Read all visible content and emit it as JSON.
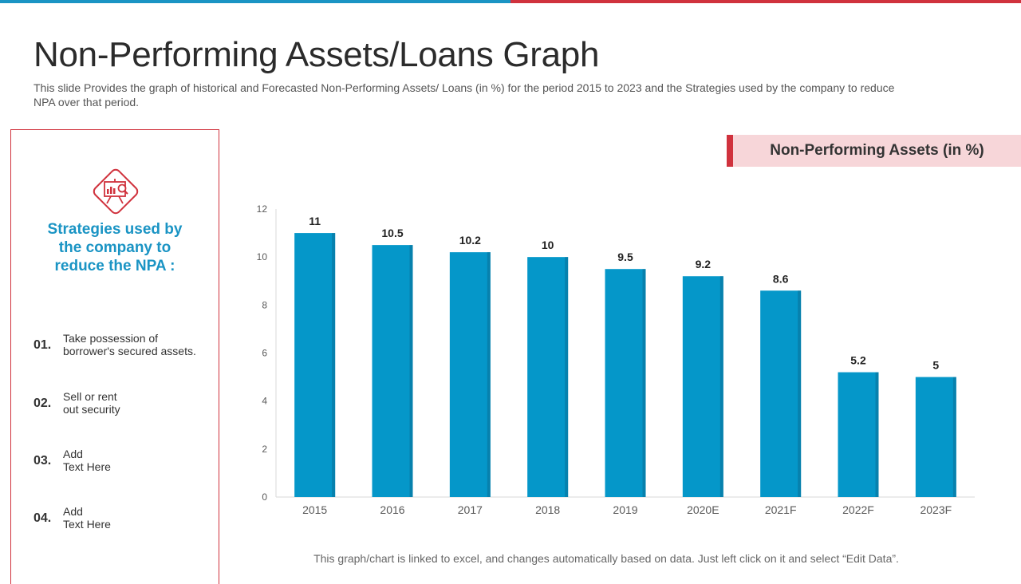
{
  "header": {
    "title": "Non-Performing Assets/Loans Graph",
    "subtitle": "This slide Provides the graph of historical and Forecasted Non-Performing Assets/ Loans (in %) for the period 2015 to 2023 and the Strategies used by the company to reduce NPA over that period."
  },
  "colors": {
    "accent_blue": "#1a94c4",
    "accent_red": "#d0323d",
    "bar": "#0597c9",
    "legend_bg": "#f7d6d9"
  },
  "strategies": {
    "icon": "presentation-analytics-icon",
    "heading_lines": [
      "Strategies used by",
      "the company to",
      "reduce the NPA :"
    ],
    "items": [
      {
        "number": "01.",
        "lines": [
          "Take possession of",
          "borrower's secured assets."
        ]
      },
      {
        "number": "02.",
        "lines": [
          "Sell or rent",
          "out security"
        ]
      },
      {
        "number": "03.",
        "lines": [
          "Add",
          "Text Here"
        ]
      },
      {
        "number": "04.",
        "lines": [
          "Add",
          "Text Here"
        ]
      }
    ]
  },
  "legend": {
    "label": "Non-Performing Assets (in %)"
  },
  "chart_data": {
    "type": "bar",
    "title": "Non-Performing Assets (in %)",
    "categories": [
      "2015",
      "2016",
      "2017",
      "2018",
      "2019",
      "2020E",
      "2021F",
      "2022F",
      "2023F"
    ],
    "values": [
      11,
      10.5,
      10.2,
      10,
      9.5,
      9.2,
      8.6,
      5.2,
      5
    ],
    "data_labels": [
      "11",
      "10.5",
      "10.2",
      "10",
      "9.5",
      "9.2",
      "8.6",
      "5.2",
      "5"
    ],
    "ylim": [
      0,
      12
    ],
    "yticks": [
      0,
      2,
      4,
      6,
      8,
      10,
      12
    ],
    "xlabel": "",
    "ylabel": "",
    "grid": false
  },
  "footnote": "This graph/chart is linked to excel,  and changes automatically based on data. Just left click on it and select “Edit Data”."
}
